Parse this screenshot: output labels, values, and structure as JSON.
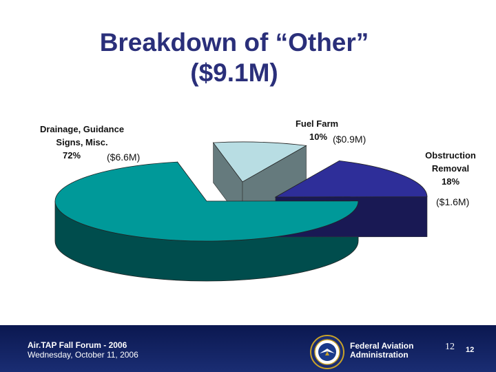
{
  "title": {
    "line1": "Breakdown of “Other”",
    "line2": "($9.1M)"
  },
  "chart_data": {
    "type": "pie",
    "title": "Breakdown of “Other” ($9.1M)",
    "slices": [
      {
        "label": "Drainage, Guidance Signs, Misc.",
        "percent_label": "72%",
        "value": 72,
        "amount": "($6.6M)",
        "color": "#009999"
      },
      {
        "label": "Fuel Farm",
        "percent_label": "10%",
        "value": 10,
        "amount": "($0.9M)",
        "color": "#b8dde3"
      },
      {
        "label": "Obstruction Removal",
        "percent_label": "18%",
        "value": 18,
        "amount": "($1.6M)",
        "color": "#2e2e99"
      }
    ]
  },
  "labels": {
    "drainage_l1": "Drainage, Guidance",
    "drainage_l2": "Signs, Misc.",
    "fuel_l1": "Fuel Farm",
    "obstruction_l1": "Obstruction",
    "obstruction_l2": "Removal"
  },
  "footer": {
    "event": "Air.TAP Fall Forum - 2006",
    "date": "Wednesday, October 11, 2006",
    "agency_l1": "Federal Aviation",
    "agency_l2": "Administration",
    "page_a": "12",
    "page_b": "12"
  },
  "colors": {
    "title": "#2a2f7a",
    "footer_bg": "#10205a"
  },
  "icons": {
    "seal": "faa-seal-icon"
  }
}
